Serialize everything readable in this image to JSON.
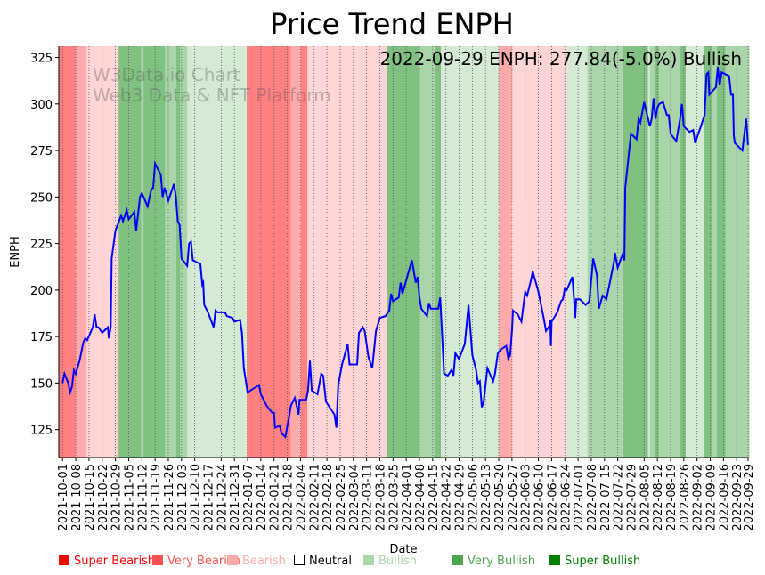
{
  "chart_data": {
    "type": "line",
    "title": "Price Trend ENPH",
    "xlabel": "Date",
    "ylabel": "ENPH",
    "ylim": [
      110,
      331
    ],
    "xlim_days": [
      -2,
      363.5
    ],
    "start_date": "2021-10-01",
    "yticks": [
      125,
      150,
      175,
      200,
      225,
      250,
      275,
      300,
      325
    ],
    "xticks": [
      "2021-10-01",
      "2021-10-08",
      "2021-10-15",
      "2021-10-22",
      "2021-10-29",
      "2021-11-05",
      "2021-11-12",
      "2021-11-19",
      "2021-11-26",
      "2021-12-03",
      "2021-12-10",
      "2021-12-17",
      "2021-12-24",
      "2021-12-31",
      "2022-01-07",
      "2022-01-14",
      "2022-01-21",
      "2022-01-28",
      "2022-02-04",
      "2022-02-11",
      "2022-02-18",
      "2022-02-25",
      "2022-03-04",
      "2022-03-11",
      "2022-03-18",
      "2022-03-25",
      "2022-04-01",
      "2022-04-08",
      "2022-04-15",
      "2022-04-22",
      "2022-04-29",
      "2022-05-06",
      "2022-05-13",
      "2022-05-20",
      "2022-05-27",
      "2022-06-03",
      "2022-06-10",
      "2022-06-17",
      "2022-06-24",
      "2022-07-01",
      "2022-07-08",
      "2022-07-15",
      "2022-07-22",
      "2022-07-29",
      "2022-08-05",
      "2022-08-12",
      "2022-08-19",
      "2022-08-26",
      "2022-09-02",
      "2022-09-09",
      "2022-09-16",
      "2022-09-23",
      "2022-09-29"
    ],
    "xtick_days": [
      0,
      7,
      14,
      21,
      28,
      35,
      42,
      49,
      56,
      63,
      70,
      77,
      84,
      91,
      98,
      105,
      112,
      119,
      126,
      133,
      140,
      147,
      154,
      161,
      168,
      175,
      182,
      189,
      196,
      203,
      210,
      217,
      224,
      231,
      238,
      245,
      252,
      259,
      266,
      273,
      280,
      287,
      294,
      301,
      308,
      315,
      322,
      329,
      336,
      343,
      350,
      357,
      363
    ],
    "annotation": "2022-09-29 ENPH: 277.84(-5.0%) Bullish",
    "watermark": [
      "W3Data.io Chart",
      "Web3 Data & NFT Platform"
    ],
    "series": [
      {
        "name": "ENPH",
        "color": "#0000ff",
        "points_day_value": [
          [
            0,
            150
          ],
          [
            1,
            155
          ],
          [
            3,
            150
          ],
          [
            4,
            145
          ],
          [
            5,
            148
          ],
          [
            6,
            157
          ],
          [
            7,
            155
          ],
          [
            9,
            162
          ],
          [
            11,
            172
          ],
          [
            12,
            174
          ],
          [
            13,
            173
          ],
          [
            16,
            180
          ],
          [
            17,
            187
          ],
          [
            18,
            180
          ],
          [
            19,
            180
          ],
          [
            21,
            177
          ],
          [
            24,
            180
          ],
          [
            24.5,
            174
          ],
          [
            25.5,
            180
          ],
          [
            26,
            217
          ],
          [
            28,
            232
          ],
          [
            31,
            240
          ],
          [
            32,
            237
          ],
          [
            34,
            243
          ],
          [
            35,
            238
          ],
          [
            38,
            242
          ],
          [
            39,
            232
          ],
          [
            41,
            250
          ],
          [
            42,
            252
          ],
          [
            45,
            245
          ],
          [
            47,
            254
          ],
          [
            48,
            255
          ],
          [
            49,
            268
          ],
          [
            52,
            262
          ],
          [
            53,
            250
          ],
          [
            54,
            255
          ],
          [
            56,
            248
          ],
          [
            59,
            257
          ],
          [
            60,
            250
          ],
          [
            61,
            237
          ],
          [
            62,
            235
          ],
          [
            63,
            217
          ],
          [
            66,
            213
          ],
          [
            67,
            225
          ],
          [
            68,
            226
          ],
          [
            69,
            216
          ],
          [
            73,
            214
          ],
          [
            74,
            203
          ],
          [
            74.5,
            204
          ],
          [
            75,
            192
          ],
          [
            77,
            188
          ],
          [
            80,
            180
          ],
          [
            81,
            189
          ],
          [
            82,
            188
          ],
          [
            86,
            188
          ],
          [
            87,
            186
          ],
          [
            90,
            185
          ],
          [
            91,
            183
          ],
          [
            94,
            184
          ],
          [
            95,
            177
          ],
          [
            96,
            158
          ],
          [
            98,
            145
          ],
          [
            101,
            147
          ],
          [
            104,
            149
          ],
          [
            105,
            144
          ],
          [
            108,
            138
          ],
          [
            111,
            134
          ],
          [
            112,
            134
          ],
          [
            112.5,
            126
          ],
          [
            115,
            127
          ],
          [
            116,
            123
          ],
          [
            118,
            121
          ],
          [
            121,
            138
          ],
          [
            123,
            142
          ],
          [
            123.5,
            140
          ],
          [
            125,
            133
          ],
          [
            125.5,
            141
          ],
          [
            129,
            141
          ],
          [
            130,
            146
          ],
          [
            131,
            162
          ],
          [
            132,
            146
          ],
          [
            135,
            144
          ],
          [
            137,
            155
          ],
          [
            138,
            154
          ],
          [
            139.5,
            140
          ],
          [
            144,
            133
          ],
          [
            145,
            126
          ],
          [
            146,
            149
          ],
          [
            148,
            160
          ],
          [
            151,
            171
          ],
          [
            152,
            160
          ],
          [
            156,
            160
          ],
          [
            157,
            177
          ],
          [
            159,
            180
          ],
          [
            160,
            178
          ],
          [
            162,
            164
          ],
          [
            164,
            158
          ],
          [
            166,
            178
          ],
          [
            168,
            185
          ],
          [
            171,
            186
          ],
          [
            173,
            189
          ],
          [
            174,
            198
          ],
          [
            175,
            194
          ],
          [
            178,
            196
          ],
          [
            179,
            204
          ],
          [
            180,
            198
          ],
          [
            185,
            216
          ],
          [
            187,
            204
          ],
          [
            188,
            207
          ],
          [
            189,
            196
          ],
          [
            190,
            190
          ],
          [
            193,
            186
          ],
          [
            194,
            193
          ],
          [
            195,
            190
          ],
          [
            199,
            190
          ],
          [
            200,
            196
          ],
          [
            202,
            155
          ],
          [
            204,
            154
          ],
          [
            206,
            157
          ],
          [
            207,
            154
          ],
          [
            208,
            166
          ],
          [
            210,
            163
          ],
          [
            213,
            171
          ],
          [
            215,
            192
          ],
          [
            217,
            165
          ],
          [
            219,
            157
          ],
          [
            220,
            150
          ],
          [
            221,
            151
          ],
          [
            222,
            137
          ],
          [
            223,
            140
          ],
          [
            225,
            158
          ],
          [
            228,
            151
          ],
          [
            229,
            155
          ],
          [
            230.5,
            166
          ],
          [
            232,
            168
          ],
          [
            235,
            170
          ],
          [
            236,
            163
          ],
          [
            237,
            165
          ],
          [
            238,
            178
          ],
          [
            238.5,
            189
          ],
          [
            241,
            187
          ],
          [
            243,
            183
          ],
          [
            245,
            199
          ],
          [
            246,
            197
          ],
          [
            248,
            205
          ],
          [
            249,
            210
          ],
          [
            252,
            199
          ],
          [
            255,
            184
          ],
          [
            256,
            178
          ],
          [
            258,
            181
          ],
          [
            258.3,
            184
          ],
          [
            258.6,
            170
          ],
          [
            259,
            183
          ],
          [
            262,
            188
          ],
          [
            264,
            194
          ],
          [
            265,
            195
          ],
          [
            266,
            201
          ],
          [
            267,
            200
          ],
          [
            270,
            207
          ],
          [
            271,
            193
          ],
          [
            271.5,
            185
          ],
          [
            272,
            195
          ],
          [
            274,
            195
          ],
          [
            277,
            192
          ],
          [
            279,
            194
          ],
          [
            281,
            217
          ],
          [
            283,
            208
          ],
          [
            284,
            190
          ],
          [
            286,
            197
          ],
          [
            288,
            195
          ],
          [
            290,
            205
          ],
          [
            292,
            215
          ],
          [
            292.5,
            220
          ],
          [
            294,
            212
          ],
          [
            296.5,
            219
          ],
          [
            297.5,
            216
          ],
          [
            298,
            255
          ],
          [
            301,
            284
          ],
          [
            304,
            281
          ],
          [
            305,
            292
          ],
          [
            306,
            290
          ],
          [
            308,
            301
          ],
          [
            311,
            288
          ],
          [
            312,
            292
          ],
          [
            313,
            303
          ],
          [
            314,
            292
          ],
          [
            315,
            298
          ],
          [
            316,
            300
          ],
          [
            318,
            301
          ],
          [
            320,
            294
          ],
          [
            321,
            294
          ],
          [
            322,
            284
          ],
          [
            325,
            280
          ],
          [
            327,
            292
          ],
          [
            328,
            300
          ],
          [
            329,
            288
          ],
          [
            332,
            285
          ],
          [
            334,
            286
          ],
          [
            335,
            279
          ],
          [
            340,
            294
          ],
          [
            341,
            316
          ],
          [
            342,
            317
          ],
          [
            342.5,
            305
          ],
          [
            346,
            309
          ],
          [
            347,
            320
          ],
          [
            348,
            310
          ],
          [
            349,
            317
          ],
          [
            353,
            315
          ],
          [
            354,
            305
          ],
          [
            355,
            305
          ],
          [
            355.5,
            283
          ],
          [
            356,
            279
          ],
          [
            360,
            275
          ],
          [
            362,
            292
          ],
          [
            363,
            278
          ]
        ]
      }
    ],
    "sentiment_bands_days": [
      [
        -2,
        7,
        "very_bearish_bg"
      ],
      [
        7,
        12.7,
        "bearish_bg"
      ],
      [
        12.7,
        29.7,
        "light_bearish_bg"
      ],
      [
        29.7,
        41.5,
        "very_bullish_bg"
      ],
      [
        41.5,
        42.9,
        "bullish_bg"
      ],
      [
        42.9,
        54.2,
        "very_bullish_bg"
      ],
      [
        54.2,
        60.3,
        "bullish_bg"
      ],
      [
        60.3,
        62.2,
        "very_bullish_bg"
      ],
      [
        62.2,
        66,
        "bullish_bg"
      ],
      [
        66,
        97.6,
        "light_bullish_bg"
      ],
      [
        97.6,
        120.7,
        "very_bearish_bg"
      ],
      [
        120.7,
        126.3,
        "bearish_bg"
      ],
      [
        126.3,
        129.6,
        "very_bearish_bg"
      ],
      [
        129.6,
        171.6,
        "light_bearish_bg"
      ],
      [
        171.6,
        188.6,
        "very_bullish_bg"
      ],
      [
        188.6,
        197,
        "bullish_bg"
      ],
      [
        197,
        200.3,
        "very_bullish_bg"
      ],
      [
        200.3,
        231,
        "light_bullish_bg"
      ],
      [
        231,
        238,
        "bearish_bg"
      ],
      [
        238,
        267.3,
        "light_bearish_bg"
      ],
      [
        267.3,
        278,
        "light_bullish_bg"
      ],
      [
        278,
        287.6,
        "bullish_bg"
      ],
      [
        287.6,
        297,
        "bullish_bg"
      ],
      [
        297,
        310,
        "very_bullish_bg"
      ],
      [
        310,
        311,
        "light_bullish_bg"
      ],
      [
        311,
        313.5,
        "bullish_bg"
      ],
      [
        313.5,
        315.8,
        "very_bullish_bg"
      ],
      [
        315.8,
        326.7,
        "bullish_bg"
      ],
      [
        326.7,
        330,
        "very_bullish_bg"
      ],
      [
        330,
        339.5,
        "light_bullish_bg"
      ],
      [
        339.5,
        344,
        "very_bullish_bg"
      ],
      [
        344,
        346.5,
        "bullish_bg"
      ],
      [
        346.5,
        351,
        "very_bullish_bg"
      ],
      [
        351,
        363.5,
        "bullish_bg"
      ]
    ],
    "band_colors": {
      "very_bearish_bg": "#ff8080",
      "bearish_bg": "#ffaaaa",
      "light_bearish_bg": "#ffd5d5",
      "light_bullish_bg": "#d5ead5",
      "bullish_bg": "#aad5aa",
      "very_bullish_bg": "#80c080"
    },
    "legend": [
      {
        "label": "Super Bearish",
        "color": "#ff0000",
        "text_color": "#ff0000"
      },
      {
        "label": "Very Bearish",
        "color": "#ff5050",
        "text_color": "#ff5050"
      },
      {
        "label": "Bearish",
        "color": "#ffaaaa",
        "text_color": "#ffaaaa"
      },
      {
        "label": "Neutral",
        "color": "none",
        "text_color": "#000000"
      },
      {
        "label": "Bullish",
        "color": "#a8d8a8",
        "text_color": "#a8d8a8"
      },
      {
        "label": "Very Bullish",
        "color": "#4ca64c",
        "text_color": "#4ca64c"
      },
      {
        "label": "Super Bullish",
        "color": "#008000",
        "text_color": "#008000"
      }
    ]
  }
}
